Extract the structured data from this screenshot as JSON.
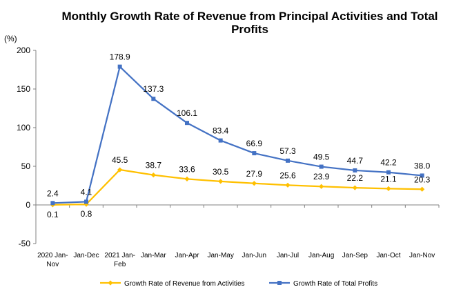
{
  "chart_data": {
    "type": "line",
    "title_lines": [
      "Monthly Growth Rate of Revenue from Principal Activities  and Total",
      "Profits"
    ],
    "unit": "(%)",
    "categories": [
      [
        "2020  Jan-",
        "Nov"
      ],
      [
        "Jan-Dec"
      ],
      [
        "2021  Jan-",
        "Feb"
      ],
      [
        "Jan-Mar"
      ],
      [
        "Jan-Apr"
      ],
      [
        "Jan-May"
      ],
      [
        "Jan-Jun"
      ],
      [
        "Jan-Jul"
      ],
      [
        "Jan-Aug"
      ],
      [
        "Jan-Sep"
      ],
      [
        "Jan-Oct"
      ],
      [
        "Jan-Nov"
      ]
    ],
    "series": [
      {
        "name": "Growth Rate of Revenue from Activities",
        "color": "#FFC000",
        "marker": "diamond",
        "values": [
          0.1,
          0.8,
          45.5,
          38.7,
          33.6,
          30.5,
          27.9,
          25.6,
          23.9,
          22.2,
          21.1,
          20.3
        ],
        "labels": [
          "0.1",
          "0.8",
          "45.5",
          "38.7",
          "33.6",
          "30.5",
          "27.9",
          "25.6",
          "23.9",
          "22.2",
          "21.1",
          "20.3"
        ]
      },
      {
        "name": "Growth Rate of Total Profits",
        "color": "#4472C4",
        "marker": "square",
        "values": [
          2.4,
          4.1,
          178.9,
          137.3,
          106.1,
          83.4,
          66.9,
          57.3,
          49.5,
          44.7,
          42.2,
          38.0
        ],
        "labels": [
          "2.4",
          "4.1",
          "178.9",
          "137.3",
          "106.1",
          "83.4",
          "66.9",
          "57.3",
          "49.5",
          "44.7",
          "42.2",
          "38.0"
        ]
      }
    ],
    "ylim": [
      -50,
      200
    ],
    "yticks": [
      -50,
      0,
      50,
      100,
      150,
      200
    ],
    "grid": false,
    "legend_position": "bottom"
  }
}
